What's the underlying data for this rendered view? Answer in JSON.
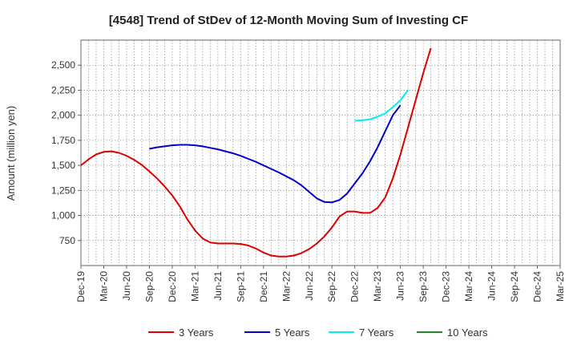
{
  "chart_data": {
    "type": "line",
    "title": "[4548]  Trend of StDev of 12-Month Moving Sum of Investing CF",
    "ylabel": "Amount (million yen)",
    "xlabel": "",
    "ylim": [
      500,
      2750
    ],
    "yticks": [
      750,
      1000,
      1250,
      1500,
      1750,
      2000,
      2250,
      2500
    ],
    "ytick_labels": [
      "750",
      "1,000",
      "1,250",
      "1,500",
      "1,750",
      "2,000",
      "2,250",
      "2,500"
    ],
    "x_categories": [
      "Dec-19",
      "Mar-20",
      "Jun-20",
      "Sep-20",
      "Dec-20",
      "Mar-21",
      "Jun-21",
      "Sep-21",
      "Dec-21",
      "Mar-22",
      "Jun-22",
      "Sep-22",
      "Dec-22",
      "Mar-23",
      "Jun-23",
      "Sep-23",
      "Dec-23",
      "Mar-24",
      "Jun-24",
      "Sep-24",
      "Dec-24",
      "Mar-25"
    ],
    "grid": true,
    "legend_position": "bottom",
    "series": [
      {
        "name": "3 Years",
        "color": "#dd0000",
        "points": [
          [
            "Dec-19",
            1500
          ],
          [
            "Jan-20",
            1560
          ],
          [
            "Feb-20",
            1610
          ],
          [
            "Mar-20",
            1635
          ],
          [
            "Apr-20",
            1640
          ],
          [
            "May-20",
            1625
          ],
          [
            "Jun-20",
            1595
          ],
          [
            "Jul-20",
            1555
          ],
          [
            "Aug-20",
            1505
          ],
          [
            "Sep-20",
            1440
          ],
          [
            "Oct-20",
            1370
          ],
          [
            "Nov-20",
            1290
          ],
          [
            "Dec-20",
            1200
          ],
          [
            "Jan-21",
            1090
          ],
          [
            "Feb-21",
            960
          ],
          [
            "Mar-21",
            850
          ],
          [
            "Apr-21",
            770
          ],
          [
            "May-21",
            730
          ],
          [
            "Jun-21",
            720
          ],
          [
            "Jul-21",
            720
          ],
          [
            "Aug-21",
            720
          ],
          [
            "Sep-21",
            715
          ],
          [
            "Oct-21",
            700
          ],
          [
            "Nov-21",
            670
          ],
          [
            "Dec-21",
            630
          ],
          [
            "Jan-22",
            600
          ],
          [
            "Feb-22",
            590
          ],
          [
            "Mar-22",
            590
          ],
          [
            "Apr-22",
            600
          ],
          [
            "May-22",
            625
          ],
          [
            "Jun-22",
            665
          ],
          [
            "Jul-22",
            720
          ],
          [
            "Aug-22",
            790
          ],
          [
            "Sep-22",
            880
          ],
          [
            "Oct-22",
            990
          ],
          [
            "Nov-22",
            1040
          ],
          [
            "Dec-22",
            1040
          ],
          [
            "Jan-23",
            1025
          ],
          [
            "Feb-23",
            1025
          ],
          [
            "Mar-23",
            1075
          ],
          [
            "Apr-23",
            1180
          ],
          [
            "May-23",
            1370
          ],
          [
            "Jun-23",
            1610
          ],
          [
            "Jul-23",
            1880
          ],
          [
            "Aug-23",
            2150
          ],
          [
            "Sep-23",
            2420
          ],
          [
            "Oct-23",
            2670
          ]
        ]
      },
      {
        "name": "5 Years",
        "color": "#0000cc",
        "points": [
          [
            "Sep-20",
            1665
          ],
          [
            "Oct-20",
            1680
          ],
          [
            "Nov-20",
            1690
          ],
          [
            "Dec-20",
            1700
          ],
          [
            "Jan-21",
            1705
          ],
          [
            "Feb-21",
            1705
          ],
          [
            "Mar-21",
            1700
          ],
          [
            "Apr-21",
            1690
          ],
          [
            "May-21",
            1675
          ],
          [
            "Jun-21",
            1660
          ],
          [
            "Jul-21",
            1640
          ],
          [
            "Aug-21",
            1620
          ],
          [
            "Sep-21",
            1595
          ],
          [
            "Oct-21",
            1565
          ],
          [
            "Nov-21",
            1535
          ],
          [
            "Dec-21",
            1500
          ],
          [
            "Jan-22",
            1465
          ],
          [
            "Feb-22",
            1430
          ],
          [
            "Mar-22",
            1390
          ],
          [
            "Apr-22",
            1350
          ],
          [
            "May-22",
            1300
          ],
          [
            "Jun-22",
            1235
          ],
          [
            "Jul-22",
            1170
          ],
          [
            "Aug-22",
            1135
          ],
          [
            "Sep-22",
            1130
          ],
          [
            "Oct-22",
            1155
          ],
          [
            "Nov-22",
            1220
          ],
          [
            "Dec-22",
            1320
          ],
          [
            "Jan-23",
            1420
          ],
          [
            "Feb-23",
            1540
          ],
          [
            "Mar-23",
            1680
          ],
          [
            "Apr-23",
            1840
          ],
          [
            "May-23",
            2000
          ],
          [
            "Jun-23",
            2100
          ]
        ]
      },
      {
        "name": "7 Years",
        "color": "#00eeee",
        "points": [
          [
            "Dec-22",
            1945
          ],
          [
            "Jan-23",
            1950
          ],
          [
            "Feb-23",
            1960
          ],
          [
            "Mar-23",
            1985
          ],
          [
            "Apr-23",
            2020
          ],
          [
            "May-23",
            2080
          ],
          [
            "Jun-23",
            2150
          ],
          [
            "Jul-23",
            2250
          ]
        ]
      },
      {
        "name": "10 Years",
        "color": "#228822",
        "points": []
      }
    ]
  }
}
